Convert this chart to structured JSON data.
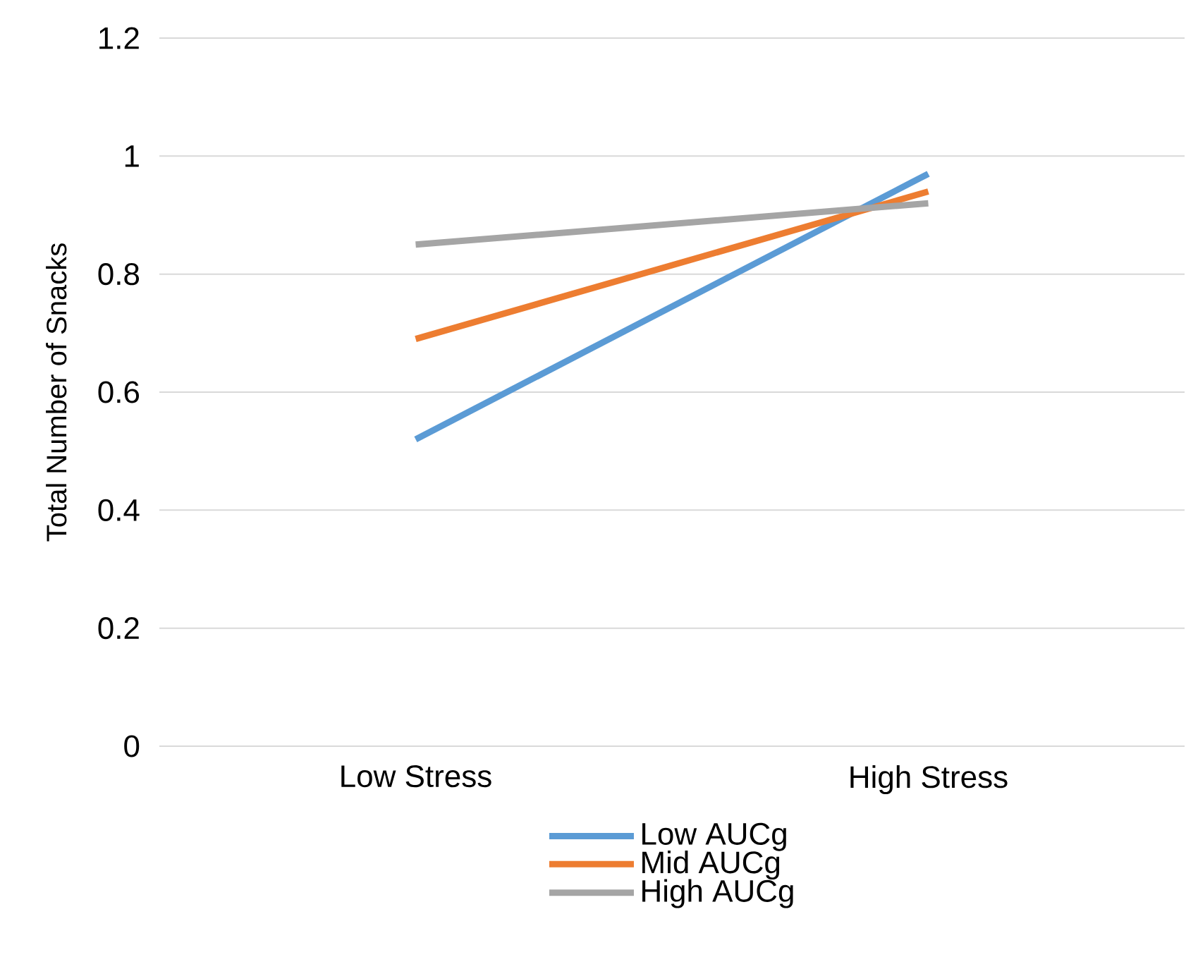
{
  "chart_data": {
    "type": "line",
    "ylabel": "Total Number of Snacks",
    "categories": [
      "Low Stress",
      "High Stress"
    ],
    "series": [
      {
        "name": "Low AUCg",
        "color": "#5b9bd5",
        "values": [
          0.52,
          0.97
        ]
      },
      {
        "name": "Mid AUCg",
        "color": "#ed7d31",
        "values": [
          0.69,
          0.94
        ]
      },
      {
        "name": "High AUCg",
        "color": "#a5a5a5",
        "values": [
          0.85,
          0.92
        ]
      }
    ],
    "ylim": [
      0,
      1.2
    ],
    "yticks": [
      0,
      0.2,
      0.4,
      0.6,
      0.8,
      1,
      1.2
    ],
    "grid": "y",
    "legend": "bottom",
    "marker": "none",
    "line_style": "solid"
  }
}
